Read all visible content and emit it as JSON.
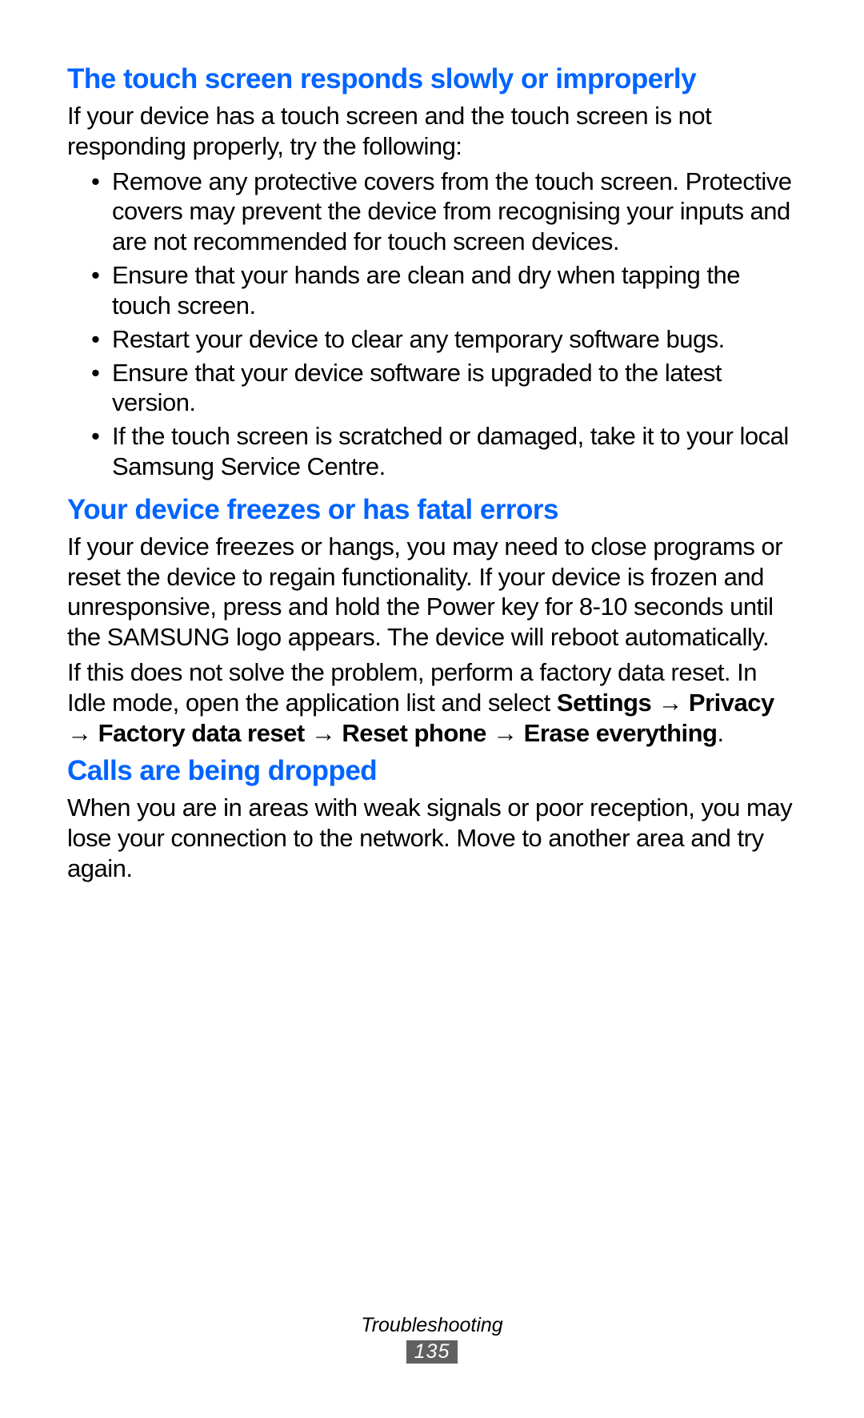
{
  "colors": {
    "heading": "#0064ff",
    "body": "#000000",
    "page_bg": "#ffffff",
    "page_number_bg": "#606060",
    "page_number_fg": "#ffffff"
  },
  "typography": {
    "heading_fontsize": 35,
    "heading_weight": 700,
    "body_fontsize": 31,
    "footer_fontsize": 25,
    "line_height": 1.22
  },
  "sections": [
    {
      "heading": "The touch screen responds slowly or improperly",
      "intro": "If your device has a touch screen and the touch screen is not responding properly, try the following:",
      "bullets": [
        "Remove any protective covers from the touch screen. Protective covers may prevent the device from recognising your inputs and are not recommended for touch screen devices.",
        "Ensure that your hands are clean and dry when tapping the touch screen.",
        "Restart your device to clear any temporary software bugs.",
        "Ensure that your device software is upgraded to the latest version.",
        "If the touch screen is scratched or damaged, take it to your local Samsung Service Centre."
      ]
    },
    {
      "heading": "Your device freezes or has fatal errors",
      "paragraphs": [
        "If your device freezes or hangs, you may need to close programs or reset the device to regain functionality. If your device is frozen and unresponsive, press and hold the Power key for 8-10 seconds until the SAMSUNG logo appears. The device will reboot automatically."
      ],
      "mixed_paragraph": {
        "prefix": "If this does not solve the problem, perform a factory data reset. In Idle mode, open the application list and select ",
        "bold": "Settings → Privacy → Factory data reset → Reset phone → Erase everything",
        "suffix": "."
      }
    },
    {
      "heading": "Calls are being dropped",
      "paragraphs": [
        "When you are in areas with weak signals or poor reception, you may lose your connection to the network. Move to another area and try again."
      ]
    }
  ],
  "footer": {
    "label": "Troubleshooting",
    "page_number": "135"
  }
}
